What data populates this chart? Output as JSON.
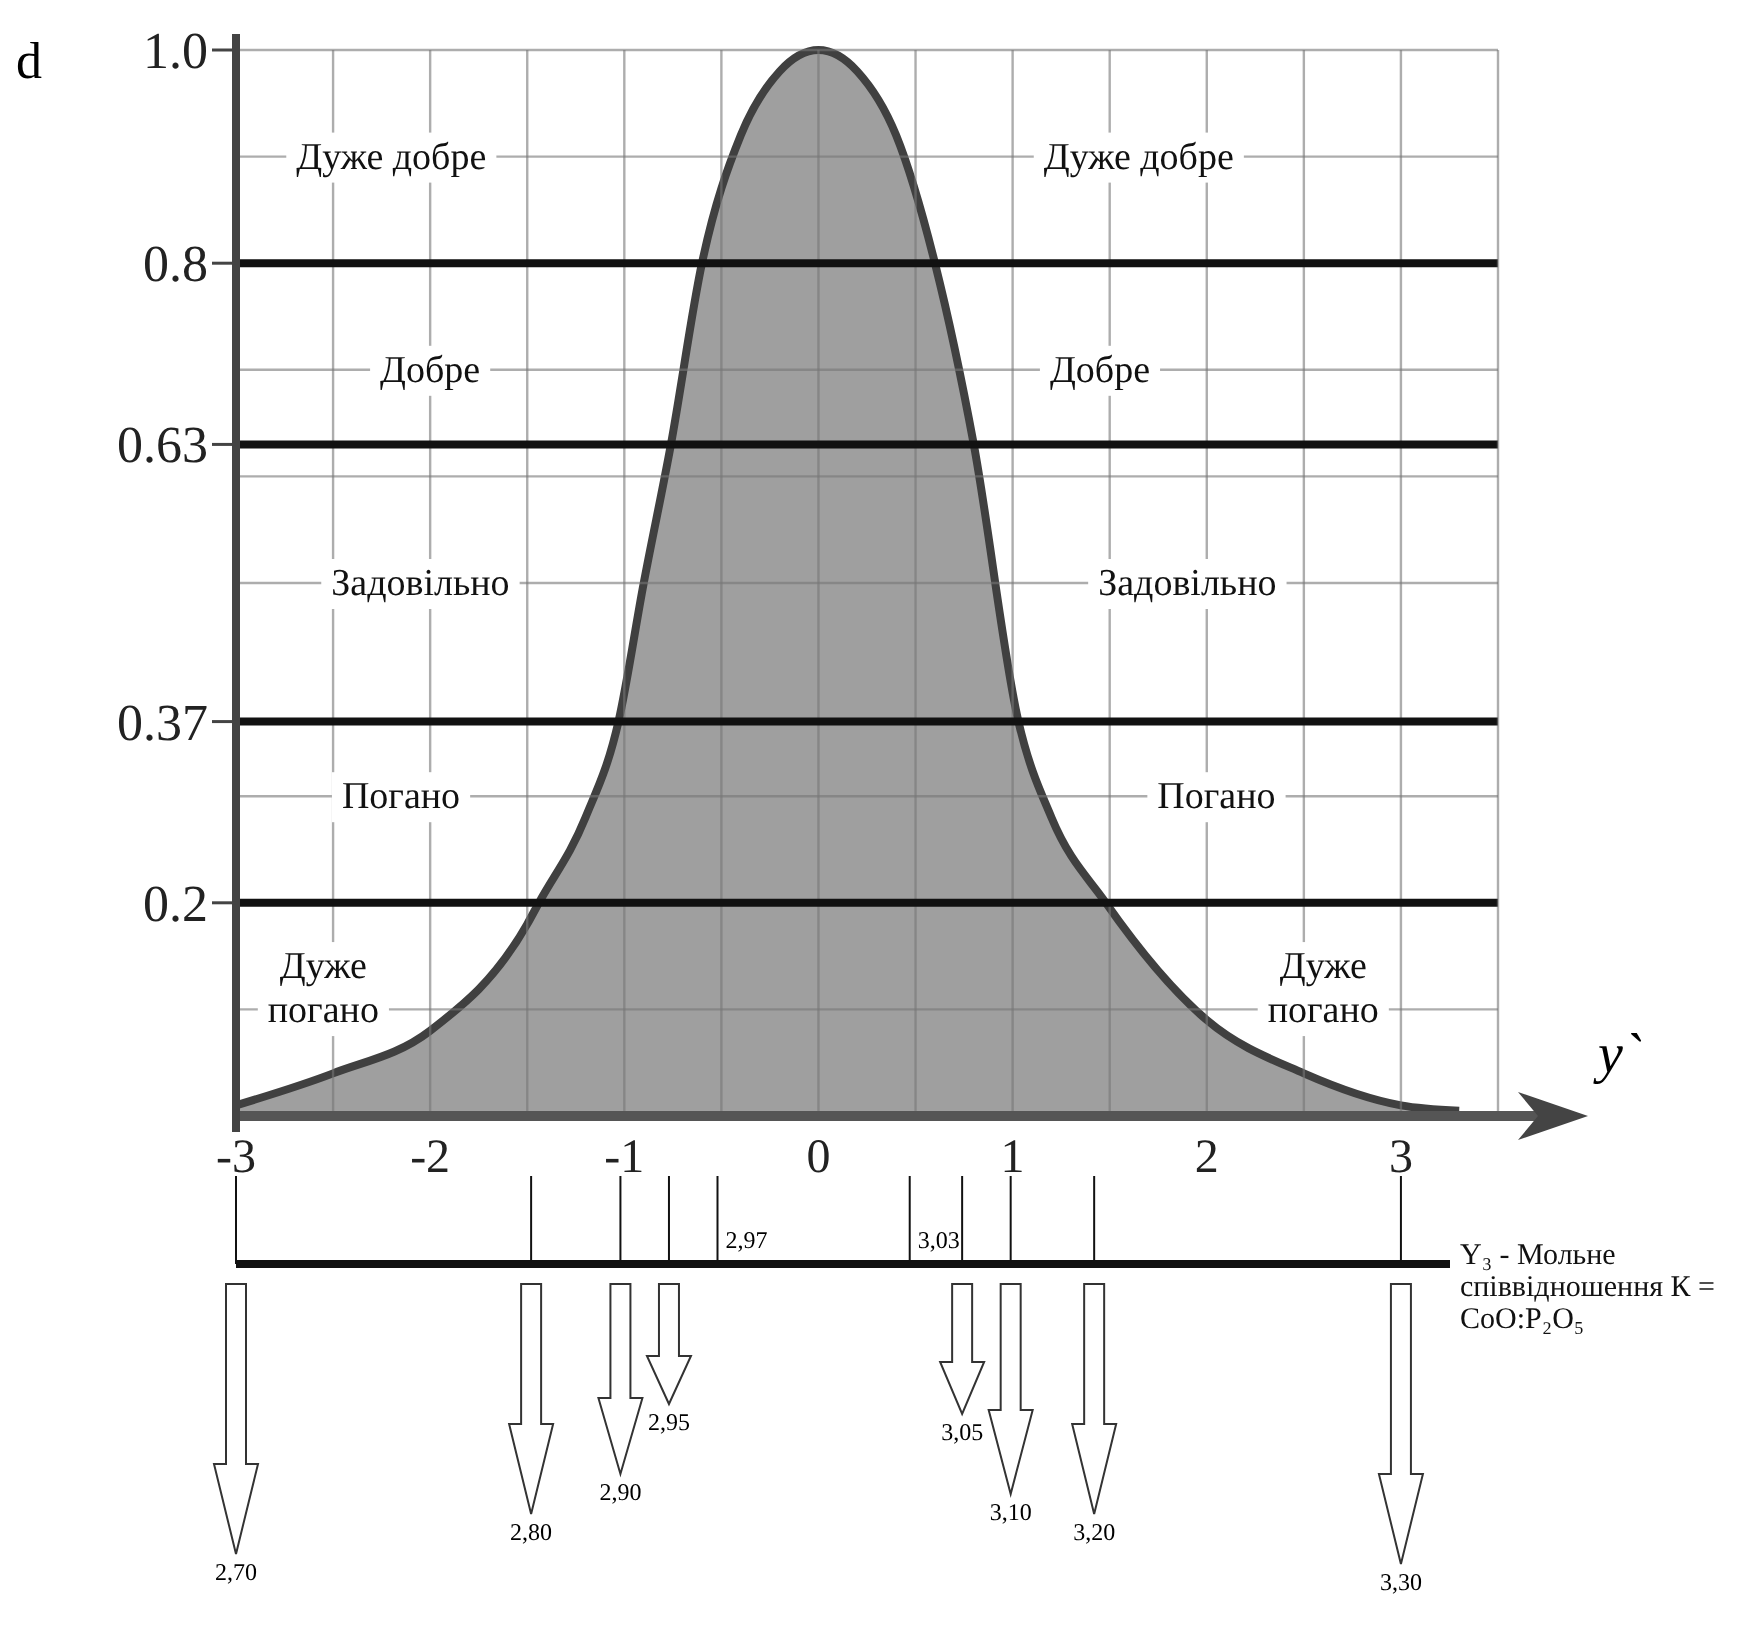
{
  "chart_data": [
    {
      "type": "area",
      "xlabel": "y`",
      "ylabel": "d",
      "x": [
        -3,
        -2.5,
        -2,
        -1.5,
        -1.44,
        -1.2,
        -1.03,
        -0.9,
        -0.76,
        -0.6,
        -0.4,
        -0.2,
        0,
        0.2,
        0.4,
        0.6,
        0.8,
        1.03,
        1.2,
        1.48,
        2,
        2.5,
        3,
        3.3
      ],
      "series": [
        {
          "color": "#404040",
          "values": [
            0.01,
            0.04,
            0.08,
            0.18,
            0.2,
            0.28,
            0.37,
            0.5,
            0.63,
            0.8,
            0.92,
            0.98,
            1,
            0.98,
            0.92,
            0.8,
            0.63,
            0.37,
            0.28,
            0.2,
            0.09,
            0.04,
            0.01,
            0.005
          ]
        }
      ],
      "xlim": [
        -3,
        3.5
      ],
      "ylim": [
        0,
        1
      ],
      "xticks": [
        -3,
        {
          "value": -2.5,
          "label": null
        },
        -2,
        {
          "value": -1.5,
          "label": null
        },
        -1,
        {
          "value": -0.5,
          "label": null
        },
        0,
        {
          "value": 0.5,
          "label": null
        },
        1,
        {
          "value": 1.5,
          "label": null
        },
        2,
        {
          "value": 2.5,
          "label": null
        },
        3
      ],
      "yticks": [
        {
          "value": 0.1,
          "label": null
        },
        0.2,
        {
          "value": 0.3,
          "label": null
        },
        0.37,
        {
          "value": 0.5,
          "label": null
        },
        {
          "value": 0.6,
          "label": null
        },
        0.63,
        {
          "value": 0.7,
          "label": null
        },
        0.8,
        {
          "value": 0.9,
          "label": null
        },
        {
          "value": 1,
          "label": "1.0"
        }
      ],
      "grid": true,
      "annotations": [
        "Дуже добре",
        "Добре",
        "Задовільно",
        "Погано",
        "Дуже погано",
        "Дуже добре",
        "Добре",
        "Задовільно",
        "Погано",
        "Дуже погано"
      ]
    },
    {
      "type": "other",
      "xlabel": "Y₃ - Мольне співвідношення К = CoO:P₂O₅",
      "categories": [
        "2,70",
        "2,80",
        "2,90",
        "2,95",
        "2,97",
        "3,03",
        "3,05",
        "3,10",
        "3,20",
        "3,30"
      ]
    }
  ]
}
